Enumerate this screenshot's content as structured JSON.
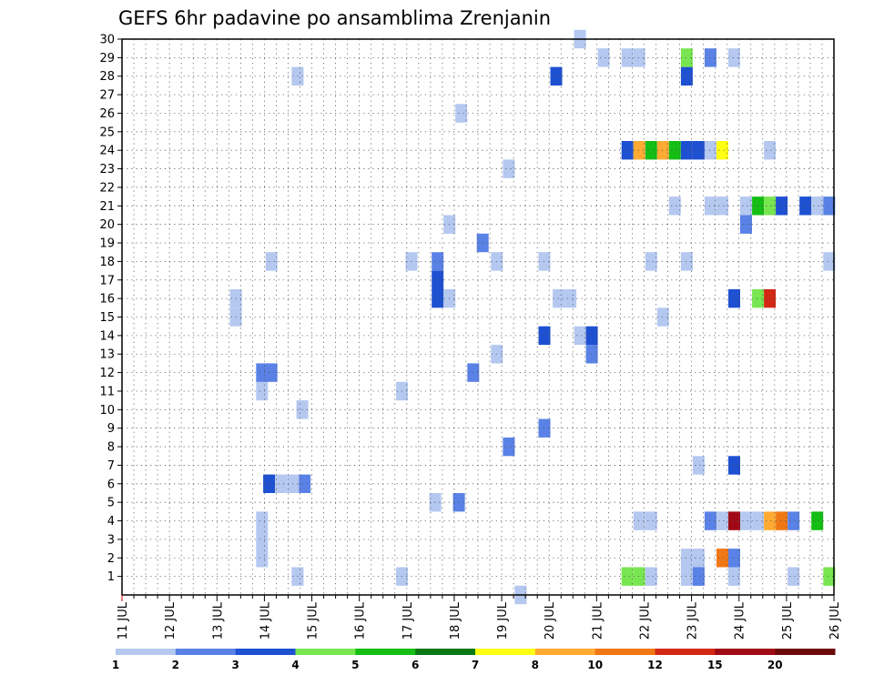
{
  "chart_data": {
    "type": "heatmap",
    "title": "GEFS 6hr padavine po ansamblima Zrenjanin",
    "x_ticks": [
      "11 JUL",
      "12 JUL",
      "13 JUL",
      "14 JUL",
      "15 JUL",
      "16 JUL",
      "17 JUL",
      "18 JUL",
      "19 JUL",
      "20 JUL",
      "21 JUL",
      "22 JUL",
      "23 JUL",
      "24 JUL",
      "25 JUL",
      "26 JUL"
    ],
    "xlim": [
      11,
      26
    ],
    "y_ticks": [
      1,
      2,
      3,
      4,
      5,
      6,
      7,
      8,
      9,
      10,
      11,
      12,
      13,
      14,
      15,
      16,
      17,
      18,
      19,
      20,
      21,
      22,
      23,
      24,
      25,
      26,
      27,
      28,
      29,
      30
    ],
    "ylim": [
      0,
      30
    ],
    "grid": true,
    "colorbar": {
      "levels": [
        "1",
        "2",
        "3",
        "4",
        "5",
        "6",
        "7",
        "8",
        "10",
        "12",
        "15",
        "20"
      ],
      "colors": [
        "#b4c8f0",
        "#5a82e6",
        "#1e50d2",
        "#78e650",
        "#14be14",
        "#0a7814",
        "#ffff14",
        "#ffaa32",
        "#f07814",
        "#d22814",
        "#a00a14",
        "#6e0a0a"
      ]
    },
    "cells": [
      {
        "x": 14.7,
        "m": 1,
        "c": 1
      },
      {
        "x": 14.7,
        "m": 28,
        "c": 1
      },
      {
        "x": 14.8,
        "m": 10,
        "c": 1
      },
      {
        "x": 14.85,
        "m": 6,
        "c": 2
      },
      {
        "x": 14.1,
        "m": 6,
        "c": 3
      },
      {
        "x": 14.35,
        "m": 6,
        "c": 1
      },
      {
        "x": 14.6,
        "m": 6,
        "c": 1
      },
      {
        "x": 13.95,
        "m": 2,
        "c": 1
      },
      {
        "x": 13.95,
        "m": 3,
        "c": 1
      },
      {
        "x": 13.95,
        "m": 4,
        "c": 1
      },
      {
        "x": 13.95,
        "m": 11,
        "c": 1
      },
      {
        "x": 13.95,
        "m": 12,
        "c": 2
      },
      {
        "x": 14.15,
        "m": 12,
        "c": 2
      },
      {
        "x": 14.15,
        "m": 18,
        "c": 1
      },
      {
        "x": 13.4,
        "m": 15,
        "c": 1
      },
      {
        "x": 13.4,
        "m": 16,
        "c": 1
      },
      {
        "x": 16.9,
        "m": 1,
        "c": 1
      },
      {
        "x": 16.9,
        "m": 11,
        "c": 1
      },
      {
        "x": 17.1,
        "m": 18,
        "c": 1
      },
      {
        "x": 17.6,
        "m": 5,
        "c": 1
      },
      {
        "x": 18.1,
        "m": 5,
        "c": 2
      },
      {
        "x": 17.65,
        "m": 16,
        "c": 3
      },
      {
        "x": 17.65,
        "m": 17,
        "c": 3
      },
      {
        "x": 17.65,
        "m": 18,
        "c": 2
      },
      {
        "x": 17.9,
        "m": 16,
        "c": 1
      },
      {
        "x": 17.9,
        "m": 20,
        "c": 1
      },
      {
        "x": 18.15,
        "m": 26,
        "c": 1
      },
      {
        "x": 18.4,
        "m": 12,
        "c": 2
      },
      {
        "x": 18.6,
        "m": 19,
        "c": 2
      },
      {
        "x": 18.9,
        "m": 13,
        "c": 1
      },
      {
        "x": 18.9,
        "m": 18,
        "c": 1
      },
      {
        "x": 19.15,
        "m": 8,
        "c": 2
      },
      {
        "x": 19.15,
        "m": 23,
        "c": 1
      },
      {
        "x": 19.4,
        "m": 0,
        "c": 1
      },
      {
        "x": 19.9,
        "m": 9,
        "c": 2
      },
      {
        "x": 19.9,
        "m": 14,
        "c": 3
      },
      {
        "x": 19.9,
        "m": 18,
        "c": 1
      },
      {
        "x": 20.2,
        "m": 16,
        "c": 1
      },
      {
        "x": 20.45,
        "m": 16,
        "c": 1
      },
      {
        "x": 20.15,
        "m": 28,
        "c": 3
      },
      {
        "x": 20.65,
        "m": 14,
        "c": 1
      },
      {
        "x": 20.65,
        "m": 30,
        "c": 1
      },
      {
        "x": 20.9,
        "m": 13,
        "c": 2
      },
      {
        "x": 20.9,
        "m": 14,
        "c": 3
      },
      {
        "x": 21.15,
        "m": 29,
        "c": 1
      },
      {
        "x": 21.65,
        "m": 1,
        "c": 4
      },
      {
        "x": 21.9,
        "m": 1,
        "c": 4
      },
      {
        "x": 22.15,
        "m": 1,
        "c": 1
      },
      {
        "x": 21.9,
        "m": 4,
        "c": 1
      },
      {
        "x": 22.15,
        "m": 4,
        "c": 1
      },
      {
        "x": 22.15,
        "m": 18,
        "c": 1
      },
      {
        "x": 22.4,
        "m": 15,
        "c": 1
      },
      {
        "x": 22.65,
        "m": 21,
        "c": 1
      },
      {
        "x": 21.65,
        "m": 29,
        "c": 1
      },
      {
        "x": 21.9,
        "m": 29,
        "c": 1
      },
      {
        "x": 21.65,
        "m": 24,
        "c": 3
      },
      {
        "x": 21.9,
        "m": 24,
        "c": 8
      },
      {
        "x": 22.15,
        "m": 24,
        "c": 5
      },
      {
        "x": 22.4,
        "m": 24,
        "c": 8
      },
      {
        "x": 22.65,
        "m": 24,
        "c": 5
      },
      {
        "x": 22.9,
        "m": 24,
        "c": 3
      },
      {
        "x": 23.15,
        "m": 24,
        "c": 3
      },
      {
        "x": 23.4,
        "m": 24,
        "c": 1
      },
      {
        "x": 23.65,
        "m": 24,
        "c": 7
      },
      {
        "x": 24.65,
        "m": 24,
        "c": 1
      },
      {
        "x": 22.9,
        "m": 1,
        "c": 1
      },
      {
        "x": 22.9,
        "m": 2,
        "c": 1
      },
      {
        "x": 23.15,
        "m": 1,
        "c": 2
      },
      {
        "x": 23.15,
        "m": 2,
        "c": 1
      },
      {
        "x": 23.15,
        "m": 7,
        "c": 1
      },
      {
        "x": 22.9,
        "m": 18,
        "c": 1
      },
      {
        "x": 22.9,
        "m": 28,
        "c": 3
      },
      {
        "x": 22.9,
        "m": 29,
        "c": 4
      },
      {
        "x": 23.4,
        "m": 29,
        "c": 2
      },
      {
        "x": 23.9,
        "m": 29,
        "c": 1
      },
      {
        "x": 23.4,
        "m": 4,
        "c": 2
      },
      {
        "x": 23.65,
        "m": 4,
        "c": 1
      },
      {
        "x": 23.9,
        "m": 4,
        "c": 11
      },
      {
        "x": 24.15,
        "m": 4,
        "c": 1
      },
      {
        "x": 24.4,
        "m": 4,
        "c": 1
      },
      {
        "x": 24.65,
        "m": 4,
        "c": 8
      },
      {
        "x": 24.9,
        "m": 4,
        "c": 9
      },
      {
        "x": 25.15,
        "m": 4,
        "c": 2
      },
      {
        "x": 25.65,
        "m": 4,
        "c": 5
      },
      {
        "x": 23.65,
        "m": 2,
        "c": 9
      },
      {
        "x": 23.9,
        "m": 2,
        "c": 2
      },
      {
        "x": 23.9,
        "m": 1,
        "c": 1
      },
      {
        "x": 23.9,
        "m": 7,
        "c": 3
      },
      {
        "x": 23.9,
        "m": 16,
        "c": 3
      },
      {
        "x": 24.4,
        "m": 16,
        "c": 4
      },
      {
        "x": 24.65,
        "m": 16,
        "c": 10
      },
      {
        "x": 23.4,
        "m": 21,
        "c": 1
      },
      {
        "x": 23.65,
        "m": 21,
        "c": 1
      },
      {
        "x": 24.15,
        "m": 21,
        "c": 1
      },
      {
        "x": 24.15,
        "m": 20,
        "c": 2
      },
      {
        "x": 24.4,
        "m": 21,
        "c": 5
      },
      {
        "x": 24.65,
        "m": 21,
        "c": 4
      },
      {
        "x": 24.9,
        "m": 21,
        "c": 3
      },
      {
        "x": 25.4,
        "m": 21,
        "c": 3
      },
      {
        "x": 25.65,
        "m": 21,
        "c": 1
      },
      {
        "x": 25.9,
        "m": 21,
        "c": 2
      },
      {
        "x": 25.15,
        "m": 1,
        "c": 1
      },
      {
        "x": 25.9,
        "m": 1,
        "c": 4
      },
      {
        "x": 25.9,
        "m": 18,
        "c": 1
      }
    ]
  }
}
